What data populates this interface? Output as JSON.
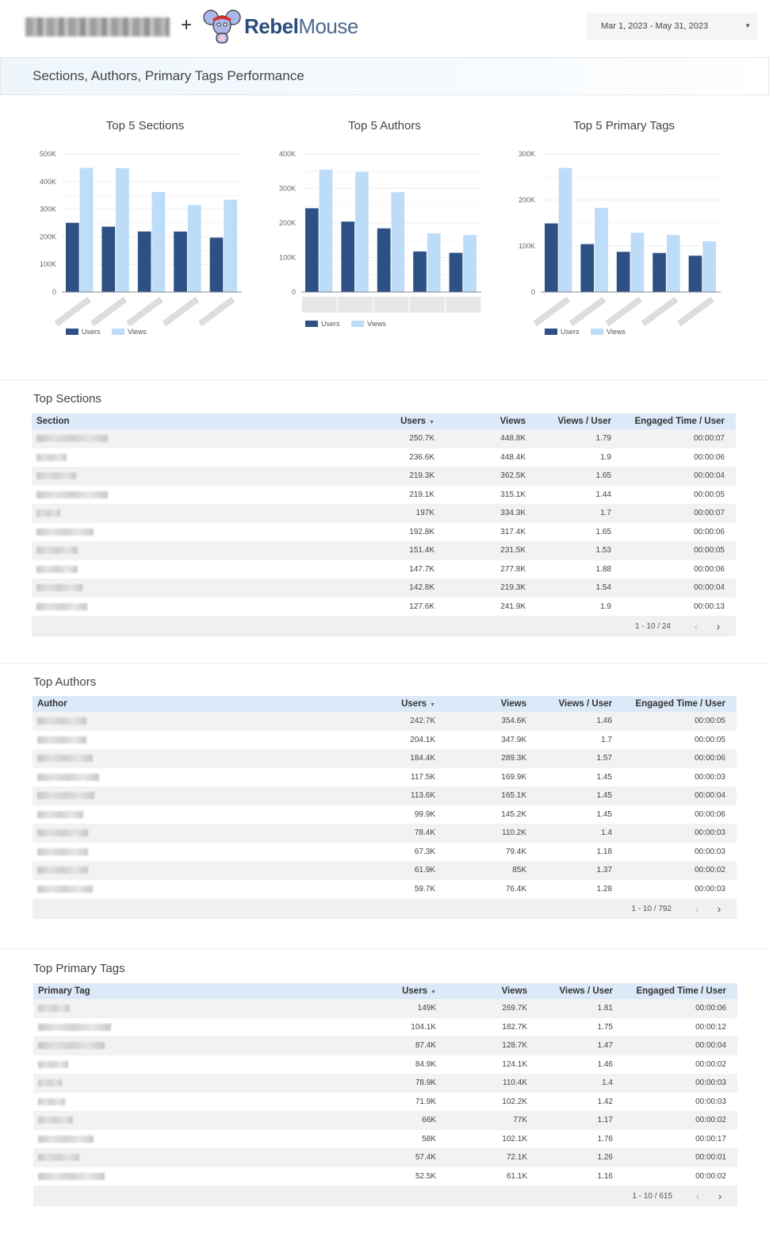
{
  "header": {
    "plus": "+",
    "brand_bold": "Rebel",
    "brand_light": "Mouse",
    "date_range": "Mar 1, 2023 - May 31, 2023",
    "dropdown_icon": "caret-down-icon"
  },
  "banner": {
    "title": "Sections, Authors, Primary Tags Performance"
  },
  "colors": {
    "users": "#2d5185",
    "views": "#bcdcf8",
    "header_row": "#dbe9f8"
  },
  "chart_data": [
    {
      "type": "bar",
      "title": "Top 5 Sections",
      "categories": [
        "",
        "",
        "",
        "",
        ""
      ],
      "ylim": [
        0,
        500000
      ],
      "yticks": [
        "0",
        "100K",
        "200K",
        "300K",
        "400K",
        "500K"
      ],
      "legend": "bottom-left",
      "series": [
        {
          "name": "Users",
          "values": [
            250700,
            236600,
            219300,
            219100,
            197000
          ]
        },
        {
          "name": "Views",
          "values": [
            448800,
            448400,
            362500,
            315100,
            334300
          ]
        }
      ]
    },
    {
      "type": "bar",
      "title": "Top 5 Authors",
      "categories": [
        "",
        "",
        "",
        "",
        ""
      ],
      "ylim": [
        0,
        400000
      ],
      "yticks": [
        "0",
        "100K",
        "200K",
        "300K",
        "400K"
      ],
      "legend": "bottom-left",
      "series": [
        {
          "name": "Users",
          "values": [
            242700,
            204100,
            184400,
            117500,
            113600
          ]
        },
        {
          "name": "Views",
          "values": [
            354600,
            347900,
            289300,
            169900,
            165100
          ]
        }
      ]
    },
    {
      "type": "bar",
      "title": "Top 5 Primary Tags",
      "categories": [
        "",
        "",
        "",
        "",
        ""
      ],
      "ylim": [
        0,
        300000
      ],
      "yticks": [
        "0",
        "100K",
        "200K",
        "300K"
      ],
      "legend": "bottom-left",
      "series": [
        {
          "name": "Users",
          "values": [
            149000,
            104100,
            87400,
            84900,
            78900
          ]
        },
        {
          "name": "Views",
          "values": [
            269700,
            182700,
            128700,
            124100,
            110400
          ]
        }
      ]
    }
  ],
  "tables": [
    {
      "title": "Top Sections",
      "columns": [
        "Section",
        "Users",
        "Views",
        "Views / User",
        "Engaged Time / User"
      ],
      "pagination": "1 - 10 / 24",
      "rows": [
        [
          "250.7K",
          "448.8K",
          "1.79",
          "00:00:07"
        ],
        [
          "236.6K",
          "448.4K",
          "1.9",
          "00:00:06"
        ],
        [
          "219.3K",
          "362.5K",
          "1.65",
          "00:00:04"
        ],
        [
          "219.1K",
          "315.1K",
          "1.44",
          "00:00:05"
        ],
        [
          "197K",
          "334.3K",
          "1.7",
          "00:00:07"
        ],
        [
          "192.8K",
          "317.4K",
          "1.65",
          "00:00:06"
        ],
        [
          "151.4K",
          "231.5K",
          "1.53",
          "00:00:05"
        ],
        [
          "147.7K",
          "277.8K",
          "1.88",
          "00:00:06"
        ],
        [
          "142.8K",
          "219.3K",
          "1.54",
          "00:00:04"
        ],
        [
          "127.6K",
          "241.9K",
          "1.9",
          "00:00:13"
        ]
      ]
    },
    {
      "title": "Top Authors",
      "columns": [
        "Author",
        "Users",
        "Views",
        "Views / User",
        "Engaged Time / User"
      ],
      "pagination": "1 - 10 / 792",
      "rows": [
        [
          "242.7K",
          "354.6K",
          "1.46",
          "00:00:05"
        ],
        [
          "204.1K",
          "347.9K",
          "1.7",
          "00:00:05"
        ],
        [
          "184.4K",
          "289.3K",
          "1.57",
          "00:00:06"
        ],
        [
          "117.5K",
          "169.9K",
          "1.45",
          "00:00:03"
        ],
        [
          "113.6K",
          "165.1K",
          "1.45",
          "00:00:04"
        ],
        [
          "99.9K",
          "145.2K",
          "1.45",
          "00:00:06"
        ],
        [
          "78.4K",
          "110.2K",
          "1.4",
          "00:00:03"
        ],
        [
          "67.3K",
          "79.4K",
          "1.18",
          "00:00:03"
        ],
        [
          "61.9K",
          "85K",
          "1.37",
          "00:00:02"
        ],
        [
          "59.7K",
          "76.4K",
          "1.28",
          "00:00:03"
        ]
      ]
    },
    {
      "title": "Top Primary Tags",
      "columns": [
        "Primary Tag",
        "Users",
        "Views",
        "Views / User",
        "Engaged Time / User"
      ],
      "pagination": "1 - 10 / 615",
      "rows": [
        [
          "149K",
          "269.7K",
          "1.81",
          "00:00:06"
        ],
        [
          "104.1K",
          "182.7K",
          "1.75",
          "00:00:12"
        ],
        [
          "87.4K",
          "128.7K",
          "1.47",
          "00:00:04"
        ],
        [
          "84.9K",
          "124.1K",
          "1.46",
          "00:00:02"
        ],
        [
          "78.9K",
          "110.4K",
          "1.4",
          "00:00:03"
        ],
        [
          "71.9K",
          "102.2K",
          "1.42",
          "00:00:03"
        ],
        [
          "66K",
          "77K",
          "1.17",
          "00:00:02"
        ],
        [
          "58K",
          "102.1K",
          "1.76",
          "00:00:17"
        ],
        [
          "57.4K",
          "72.1K",
          "1.26",
          "00:00:01"
        ],
        [
          "52.5K",
          "61.1K",
          "1.16",
          "00:00:02"
        ]
      ]
    }
  ]
}
